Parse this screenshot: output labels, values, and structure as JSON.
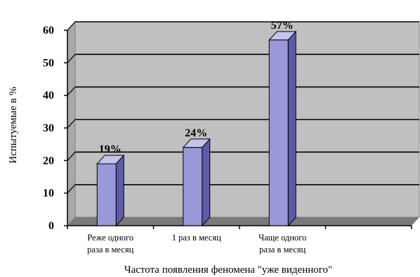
{
  "chart_data": {
    "type": "bar",
    "title": "",
    "xlabel": "Частота появления феномена \"уже виденного\"",
    "ylabel": "Испытуемые в %",
    "ylim": [
      0,
      60
    ],
    "yticks": [
      0,
      10,
      20,
      30,
      40,
      50,
      60
    ],
    "grid": true,
    "categories": [
      [
        "Реже одного",
        "раза в месяц"
      ],
      [
        "1 раз в месяц"
      ],
      [
        "Чаще одного",
        "раза в месяц"
      ],
      []
    ],
    "values": [
      19,
      24,
      57,
      null
    ],
    "data_labels": [
      "19%",
      "24%",
      "57%",
      ""
    ],
    "colors": {
      "bar_front": "#9999d9",
      "bar_side": "#5c5cab",
      "bar_top": "#c4c4ee",
      "wall": "#c0c0c0",
      "floor": "#7a7a7a",
      "grid": "#000000"
    }
  }
}
